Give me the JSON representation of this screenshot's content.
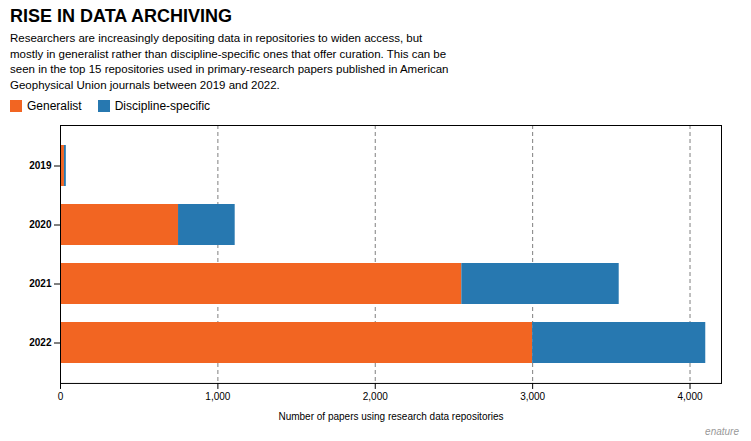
{
  "chart_data": {
    "type": "bar",
    "orientation": "horizontal",
    "stacked": true,
    "title": "RISE IN DATA ARCHIVING",
    "subtitle": "Researchers are increasingly depositing data in repositories to widen access, but\nmostly in generalist rather than discipline-specific ones that offer curation. This can be\nseen in the top 15 repositories used in primary-research papers published in American\nGeophysical Union journals between 2019 and 2022.",
    "annotations": [
      "enature"
    ],
    "categories": [
      "2019",
      "2020",
      "2021",
      "2022"
    ],
    "series": [
      {
        "name": "Generalist",
        "color": "#F26522",
        "values": [
          25,
          750,
          2550,
          3000
        ]
      },
      {
        "name": "Discipline-specific",
        "color": "#2778B0",
        "values": [
          12,
          360,
          1000,
          1100
        ]
      }
    ],
    "xlabel": "Number of papers using research data repositories",
    "xlim": [
      0,
      4200
    ],
    "xticks": [
      0,
      {
        "value": 1000,
        "label": "1,000"
      },
      {
        "value": 2000,
        "label": "2,000"
      },
      {
        "value": 3000,
        "label": "3,000"
      },
      {
        "value": 4000,
        "label": "4,000"
      }
    ],
    "grid": true,
    "legend": "top left"
  }
}
